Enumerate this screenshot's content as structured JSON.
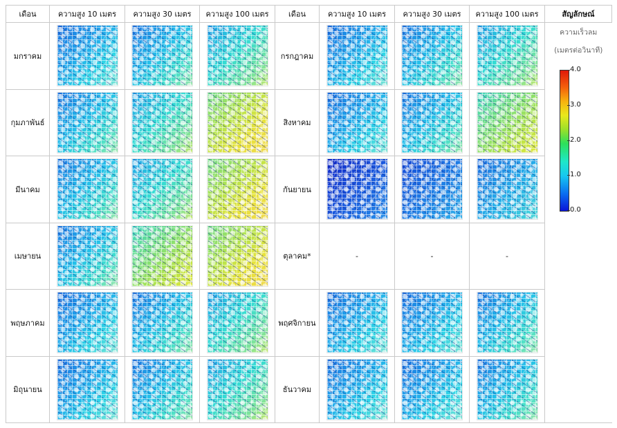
{
  "header": {
    "month": "เดือน",
    "h10": "ความสูง 10 เมตร",
    "h30": "ความสูง 30 เมตร",
    "h100": "ความสูง 100 เมตร",
    "legend": "สัญลักษณ์"
  },
  "legend": {
    "title_line1": "ความเร็วลม",
    "title_line2": "(เมตรต่อวินาที)",
    "ticks": [
      "4.0",
      "3.0",
      "2.0",
      "1.0",
      "0.0"
    ],
    "colors": [
      "#0a14d8",
      "#17c8f0",
      "#2ee05a",
      "#e9e81c",
      "#e01a0a"
    ]
  },
  "placeholder": "-",
  "rows": [
    {
      "left": "มกราคม",
      "right": "กรกฎาคม"
    },
    {
      "left": "กุมภาพันธ์",
      "right": "สิงหาคม"
    },
    {
      "left": "มีนาคม",
      "right": "กันยายน"
    },
    {
      "left": "เมษายน",
      "right": "ตุลาคม*"
    },
    {
      "left": "พฤษภาคม",
      "right": "พฤศจิกายน"
    },
    {
      "left": "มิถุนายน",
      "right": "ธันวาคม"
    }
  ]
}
